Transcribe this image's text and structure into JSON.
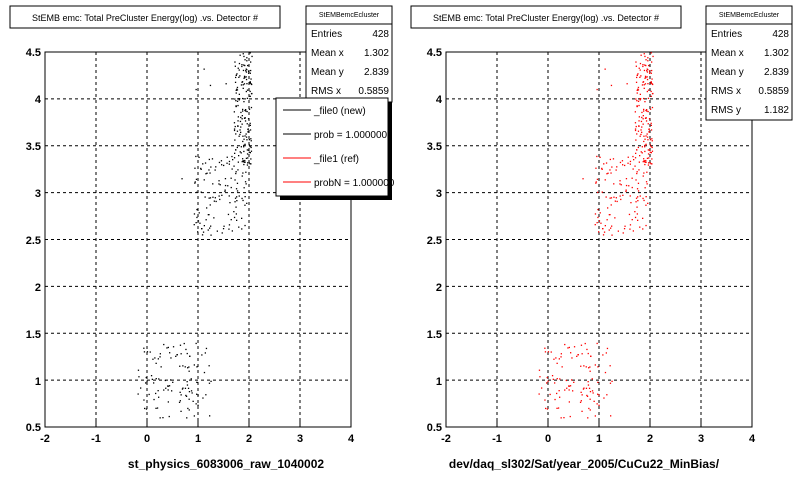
{
  "footer_text": "",
  "legend": {
    "entries": [
      {
        "label": "_file0 (new)",
        "color": "#000000"
      },
      {
        "label": "prob = 1.000000",
        "color": "#000000"
      },
      {
        "label": "_file1 (ref)",
        "color": "#ff0000"
      },
      {
        "label": "probN = 1.000000",
        "color": "#ff0000"
      }
    ]
  },
  "chart_data": [
    {
      "type": "scatter",
      "title": "StEMB emc: Total PreCluster Energy(log) .vs. Detector #",
      "xlabel": "st_physics_6083006_raw_1040002",
      "ylabel": "",
      "xlim": [
        -2,
        4
      ],
      "ylim": [
        0.5,
        4.5
      ],
      "xticks": [
        "-2",
        "-1",
        "0",
        "1",
        "2",
        "3",
        "4"
      ],
      "yticks": [
        "0.5",
        "1",
        "1.5",
        "2",
        "2.5",
        "3",
        "3.5",
        "4",
        "4.5"
      ],
      "grid": true,
      "marker_color": "#000000",
      "stats": {
        "name": "StEMBemcEcluster",
        "rows": [
          {
            "label": "Entries",
            "value": "428"
          },
          {
            "label": "Mean x",
            "value": "1.302"
          },
          {
            "label": "Mean y",
            "value": "2.839"
          },
          {
            "label": "RMS x",
            "value": "0.5859"
          }
        ]
      },
      "clusters": [
        {
          "x": [
            -0.2,
            1.25
          ],
          "y": [
            0.6,
            1.4
          ],
          "n": 110
        },
        {
          "x": [
            0.9,
            1.95
          ],
          "y": [
            2.55,
            3.4
          ],
          "n": 120
        },
        {
          "x": [
            1.7,
            2.05
          ],
          "y": [
            3.3,
            4.5
          ],
          "n": 170
        },
        {
          "x": [
            0.9,
            1.6
          ],
          "y": [
            4.1,
            4.35
          ],
          "n": 4
        },
        {
          "x": [
            -0.3,
            2.0
          ],
          "y": [
            2.9,
            3.3
          ],
          "n": 4
        }
      ]
    },
    {
      "type": "scatter",
      "title": "StEMB emc: Total PreCluster Energy(log) .vs. Detector #",
      "xlabel": "dev/daq_sl302/Sat/year_2005/CuCu22_MinBias/",
      "ylabel": "",
      "xlim": [
        -2,
        4
      ],
      "ylim": [
        0.5,
        4.5
      ],
      "xticks": [
        "-2",
        "-1",
        "0",
        "1",
        "2",
        "3",
        "4"
      ],
      "yticks": [
        "0.5",
        "1",
        "1.5",
        "2",
        "2.5",
        "3",
        "3.5",
        "4",
        "4.5"
      ],
      "grid": true,
      "marker_color": "#ff0000",
      "stats": {
        "name": "StEMBemcEcluster",
        "rows": [
          {
            "label": "Entries",
            "value": "428"
          },
          {
            "label": "Mean x",
            "value": "1.302"
          },
          {
            "label": "Mean y",
            "value": "2.839"
          },
          {
            "label": "RMS x",
            "value": "0.5859"
          },
          {
            "label": "RMS y",
            "value": "1.182"
          }
        ]
      },
      "clusters": [
        {
          "x": [
            -0.2,
            1.25
          ],
          "y": [
            0.6,
            1.4
          ],
          "n": 110
        },
        {
          "x": [
            0.9,
            1.95
          ],
          "y": [
            2.55,
            3.4
          ],
          "n": 120
        },
        {
          "x": [
            1.7,
            2.05
          ],
          "y": [
            3.3,
            4.5
          ],
          "n": 170
        },
        {
          "x": [
            0.9,
            1.6
          ],
          "y": [
            4.1,
            4.35
          ],
          "n": 4
        },
        {
          "x": [
            -0.3,
            2.0
          ],
          "y": [
            2.9,
            3.3
          ],
          "n": 4
        }
      ]
    }
  ]
}
